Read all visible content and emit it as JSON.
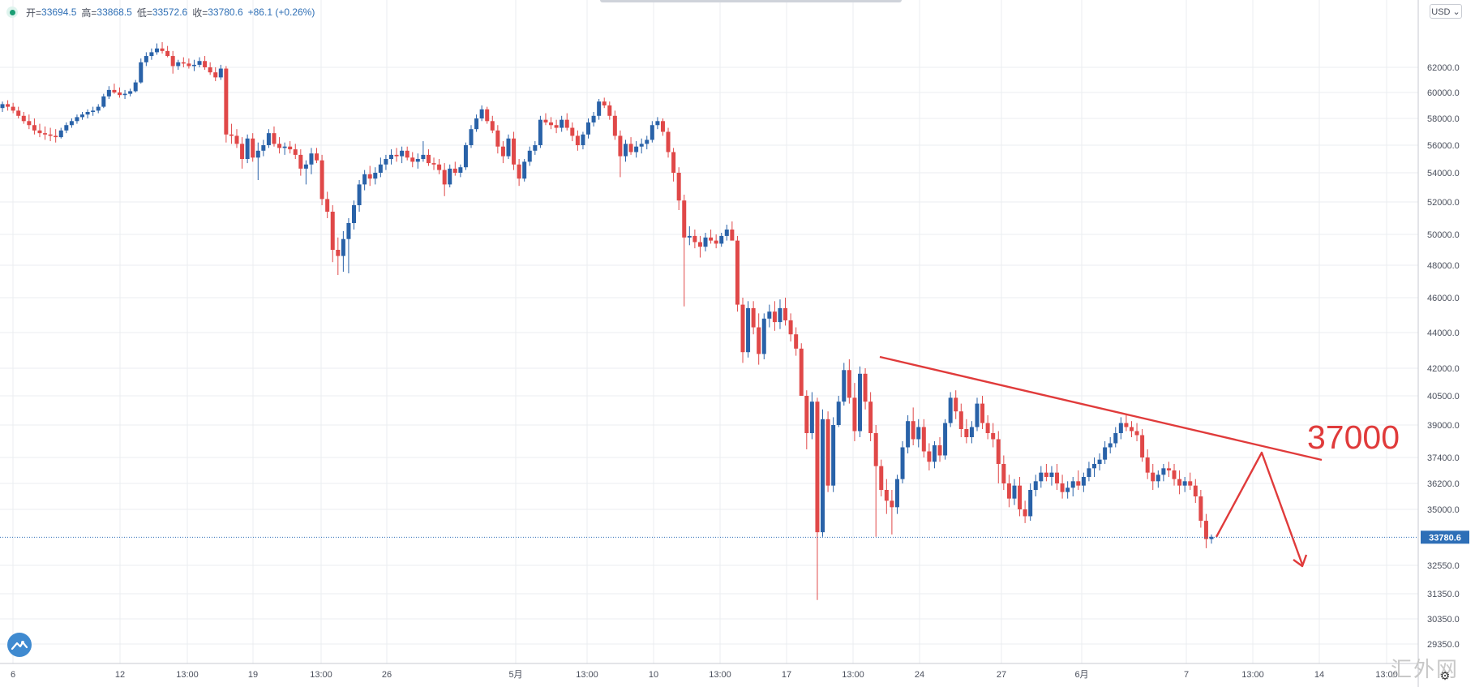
{
  "header": {
    "open_label": "开=",
    "open_value": "33694.5",
    "high_label": "高=",
    "high_value": "33868.5",
    "low_label": "低=",
    "low_value": "33572.6",
    "close_label": "收=",
    "close_value": "33780.6",
    "change": "+86.1 (+0.26%)"
  },
  "currency_button": "USD ⌄",
  "annotation_text": "37000",
  "watermark_text": "汇外网",
  "colors": {
    "up": "#2962a8",
    "down": "#e04848",
    "annotation": "#e03b3b",
    "last_price_bg": "#2e6fb7",
    "grid": "#ebedf1"
  },
  "chart_data": {
    "type": "candlestick",
    "y_ticks": [
      "62000.0",
      "60000.0",
      "58000.0",
      "56000.0",
      "54000.0",
      "52000.0",
      "50000.0",
      "48000.0",
      "46000.0",
      "44000.0",
      "42000.0",
      "40500.0",
      "39000.0",
      "37400.0",
      "36200.0",
      "35000.0",
      "32550.0",
      "31350.0",
      "30350.0",
      "29350.0"
    ],
    "x_ticks": [
      "6",
      "12",
      "13:00",
      "19",
      "13:00",
      "26",
      "5月",
      "13:00",
      "10",
      "13:00",
      "17",
      "13:00",
      "24",
      "27",
      "6月",
      "7",
      "13:00",
      "14",
      "13:00"
    ],
    "last_price_label": "33780.6",
    "last_price": 33780.6,
    "candles": [
      [
        58800,
        59300,
        58500,
        59100
      ],
      [
        59100,
        59400,
        58600,
        58900
      ],
      [
        58900,
        59200,
        58400,
        58600
      ],
      [
        58600,
        58900,
        58000,
        58200
      ],
      [
        58200,
        58500,
        57600,
        57800
      ],
      [
        57800,
        58300,
        57200,
        57500
      ],
      [
        57500,
        58000,
        56800,
        57100
      ],
      [
        57100,
        57600,
        56600,
        56900
      ],
      [
        56900,
        57400,
        56400,
        56800
      ],
      [
        56800,
        57300,
        56300,
        56700
      ],
      [
        56700,
        57200,
        56200,
        56600
      ],
      [
        56600,
        57300,
        56500,
        57100
      ],
      [
        57100,
        57700,
        56900,
        57500
      ],
      [
        57500,
        58000,
        57300,
        57800
      ],
      [
        57800,
        58300,
        57600,
        58100
      ],
      [
        58100,
        58500,
        57900,
        58300
      ],
      [
        58300,
        58700,
        58000,
        58500
      ],
      [
        58500,
        58900,
        58200,
        58600
      ],
      [
        58600,
        59100,
        58400,
        58900
      ],
      [
        58900,
        59900,
        58800,
        59700
      ],
      [
        59700,
        60500,
        59500,
        60200
      ],
      [
        60200,
        60700,
        59900,
        60000
      ],
      [
        60000,
        60400,
        59600,
        59800
      ],
      [
        59800,
        60200,
        59500,
        59900
      ],
      [
        59900,
        60300,
        59700,
        60100
      ],
      [
        60100,
        61000,
        60000,
        60800
      ],
      [
        60800,
        62700,
        60700,
        62400
      ],
      [
        62400,
        63200,
        62100,
        62900
      ],
      [
        62900,
        63500,
        62600,
        63200
      ],
      [
        63200,
        63900,
        63000,
        63500
      ],
      [
        63500,
        64000,
        63100,
        63300
      ],
      [
        63300,
        63700,
        62800,
        62900
      ],
      [
        62900,
        63300,
        61500,
        62100
      ],
      [
        62100,
        62600,
        61800,
        62400
      ],
      [
        62400,
        62800,
        62000,
        62300
      ],
      [
        62300,
        62700,
        61900,
        62100
      ],
      [
        62100,
        62600,
        61700,
        62200
      ],
      [
        62200,
        62800,
        62000,
        62500
      ],
      [
        62500,
        62900,
        61800,
        62000
      ],
      [
        62000,
        62400,
        61400,
        61600
      ],
      [
        61600,
        62000,
        60900,
        61200
      ],
      [
        61200,
        62200,
        61000,
        61900
      ],
      [
        61900,
        62100,
        56200,
        56800
      ],
      [
        56800,
        57600,
        56100,
        56700
      ],
      [
        56700,
        57200,
        55800,
        56100
      ],
      [
        56100,
        56600,
        54300,
        55000
      ],
      [
        55000,
        56800,
        54700,
        56500
      ],
      [
        56500,
        56900,
        54800,
        55100
      ],
      [
        55100,
        56200,
        53500,
        55600
      ],
      [
        55600,
        56400,
        55200,
        56000
      ],
      [
        56000,
        57200,
        55800,
        56900
      ],
      [
        56900,
        57400,
        55900,
        56100
      ],
      [
        56100,
        56600,
        55400,
        55800
      ],
      [
        55800,
        56200,
        55300,
        55900
      ],
      [
        55900,
        56300,
        55400,
        55700
      ],
      [
        55700,
        56100,
        55000,
        55300
      ],
      [
        55300,
        55700,
        53800,
        54300
      ],
      [
        54300,
        54900,
        53200,
        54600
      ],
      [
        54600,
        55800,
        53900,
        55400
      ],
      [
        55400,
        55800,
        54700,
        54900
      ],
      [
        54900,
        55300,
        51800,
        52200
      ],
      [
        52200,
        52700,
        51000,
        51400
      ],
      [
        51400,
        51800,
        48200,
        49000
      ],
      [
        49000,
        49800,
        47400,
        48600
      ],
      [
        48600,
        50200,
        47600,
        49700
      ],
      [
        49700,
        51000,
        47500,
        50700
      ],
      [
        50700,
        52100,
        50300,
        51800
      ],
      [
        51800,
        53500,
        51400,
        53200
      ],
      [
        53200,
        54200,
        52800,
        53900
      ],
      [
        53900,
        54500,
        53100,
        53600
      ],
      [
        53600,
        54400,
        53200,
        54000
      ],
      [
        54000,
        55100,
        53700,
        54600
      ],
      [
        54600,
        55300,
        54200,
        55000
      ],
      [
        55000,
        55700,
        54600,
        55300
      ],
      [
        55300,
        55800,
        54800,
        55200
      ],
      [
        55200,
        55900,
        54700,
        55600
      ],
      [
        55600,
        55900,
        54900,
        55100
      ],
      [
        55100,
        55500,
        54400,
        54800
      ],
      [
        54800,
        55400,
        54300,
        55000
      ],
      [
        55000,
        56300,
        54800,
        55300
      ],
      [
        55300,
        55700,
        54500,
        54700
      ],
      [
        54700,
        55100,
        54200,
        54600
      ],
      [
        54600,
        55000,
        53900,
        54200
      ],
      [
        54200,
        54700,
        52400,
        53200
      ],
      [
        53200,
        54600,
        53000,
        54300
      ],
      [
        54300,
        54800,
        53800,
        54000
      ],
      [
        54000,
        54600,
        53700,
        54400
      ],
      [
        54400,
        56200,
        54200,
        56000
      ],
      [
        56000,
        57500,
        55800,
        57200
      ],
      [
        57200,
        58300,
        57000,
        58000
      ],
      [
        58000,
        59000,
        57800,
        58700
      ],
      [
        58700,
        58900,
        57600,
        57800
      ],
      [
        57800,
        58200,
        56900,
        57100
      ],
      [
        57100,
        57500,
        55400,
        55900
      ],
      [
        55900,
        56300,
        54700,
        55200
      ],
      [
        55200,
        56800,
        55000,
        56500
      ],
      [
        56500,
        57000,
        54200,
        54600
      ],
      [
        54600,
        55000,
        53100,
        53600
      ],
      [
        53600,
        55000,
        53400,
        54800
      ],
      [
        54800,
        55900,
        54500,
        55600
      ],
      [
        55600,
        56300,
        55300,
        56000
      ],
      [
        56000,
        58200,
        55800,
        57900
      ],
      [
        57900,
        58400,
        57500,
        57700
      ],
      [
        57700,
        58100,
        57200,
        57500
      ],
      [
        57500,
        57900,
        56900,
        57300
      ],
      [
        57300,
        58200,
        57000,
        57900
      ],
      [
        57900,
        58400,
        57100,
        57300
      ],
      [
        57300,
        57700,
        56300,
        56700
      ],
      [
        56700,
        57100,
        55600,
        56000
      ],
      [
        56000,
        57000,
        55700,
        56800
      ],
      [
        56800,
        58000,
        56500,
        57700
      ],
      [
        57700,
        58500,
        57400,
        58200
      ],
      [
        58200,
        59500,
        57900,
        59300
      ],
      [
        59300,
        59600,
        58800,
        59000
      ],
      [
        59000,
        59300,
        57900,
        58200
      ],
      [
        58200,
        58600,
        56400,
        56700
      ],
      [
        56700,
        57100,
        53700,
        55200
      ],
      [
        55200,
        56400,
        54800,
        56100
      ],
      [
        56100,
        56600,
        55300,
        55500
      ],
      [
        55500,
        56300,
        55100,
        55900
      ],
      [
        55900,
        56500,
        55400,
        56100
      ],
      [
        56100,
        56700,
        55700,
        56400
      ],
      [
        56400,
        57800,
        56200,
        57500
      ],
      [
        57500,
        58100,
        57200,
        57800
      ],
      [
        57800,
        58000,
        56700,
        57000
      ],
      [
        57000,
        57300,
        55100,
        55500
      ],
      [
        55500,
        55800,
        53400,
        54000
      ],
      [
        54000,
        54400,
        51500,
        52100
      ],
      [
        52100,
        52500,
        45500,
        49800
      ],
      [
        49800,
        50500,
        49300,
        49900
      ],
      [
        49900,
        50300,
        49100,
        49500
      ],
      [
        49500,
        49900,
        48500,
        49200
      ],
      [
        49200,
        50100,
        48900,
        49800
      ],
      [
        49800,
        50300,
        49400,
        49600
      ],
      [
        49600,
        50000,
        49100,
        49400
      ],
      [
        49400,
        50100,
        49200,
        49900
      ],
      [
        49900,
        50600,
        49600,
        50300
      ],
      [
        50300,
        50800,
        49800,
        49600
      ],
      [
        49600,
        49900,
        45200,
        45600
      ],
      [
        45600,
        46000,
        42300,
        42900
      ],
      [
        42900,
        45800,
        42600,
        45400
      ],
      [
        45400,
        45800,
        43900,
        44300
      ],
      [
        44300,
        45100,
        42200,
        42800
      ],
      [
        42800,
        45100,
        42500,
        44800
      ],
      [
        44800,
        45600,
        44300,
        45200
      ],
      [
        45200,
        45800,
        44100,
        44600
      ],
      [
        44600,
        45900,
        44200,
        45400
      ],
      [
        45400,
        46000,
        44400,
        44700
      ],
      [
        44700,
        45100,
        43500,
        43900
      ],
      [
        43900,
        44300,
        42700,
        43100
      ],
      [
        43100,
        43400,
        40600,
        40500
      ],
      [
        40500,
        40800,
        37800,
        38600
      ],
      [
        38600,
        40700,
        38300,
        40200
      ],
      [
        40200,
        40400,
        31100,
        34000
      ],
      [
        34000,
        39800,
        33800,
        39300
      ],
      [
        39300,
        39700,
        35800,
        36100
      ],
      [
        36100,
        39400,
        35800,
        39000
      ],
      [
        39000,
        40500,
        38900,
        40200
      ],
      [
        40200,
        42300,
        40000,
        41900
      ],
      [
        41900,
        42500,
        40100,
        40400
      ],
      [
        40400,
        41200,
        38200,
        38700
      ],
      [
        38700,
        42100,
        38400,
        41700
      ],
      [
        41700,
        42000,
        39800,
        40200
      ],
      [
        40200,
        40700,
        38200,
        38600
      ],
      [
        38600,
        39000,
        33800,
        37000
      ],
      [
        37000,
        37300,
        35600,
        35900
      ],
      [
        35900,
        36400,
        34800,
        35400
      ],
      [
        35400,
        35900,
        33900,
        35100
      ],
      [
        35100,
        36600,
        34800,
        36400
      ],
      [
        36400,
        38200,
        36200,
        37900
      ],
      [
        37900,
        39500,
        37600,
        39200
      ],
      [
        39200,
        39900,
        38000,
        38300
      ],
      [
        38300,
        39300,
        37900,
        38900
      ],
      [
        38900,
        39300,
        37400,
        37700
      ],
      [
        37700,
        38100,
        36800,
        37200
      ],
      [
        37200,
        38200,
        36900,
        38000
      ],
      [
        38000,
        38400,
        37200,
        37500
      ],
      [
        37500,
        39300,
        37300,
        39100
      ],
      [
        39100,
        40700,
        38900,
        40400
      ],
      [
        40400,
        40800,
        39300,
        39700
      ],
      [
        39700,
        40100,
        38400,
        38800
      ],
      [
        38800,
        39300,
        38100,
        38400
      ],
      [
        38400,
        39200,
        38100,
        38900
      ],
      [
        38900,
        40400,
        38700,
        40100
      ],
      [
        40100,
        40500,
        38800,
        39100
      ],
      [
        39100,
        39500,
        38300,
        38600
      ],
      [
        38600,
        39100,
        37900,
        38300
      ],
      [
        38300,
        38700,
        36200,
        37100
      ],
      [
        37100,
        37500,
        35900,
        36200
      ],
      [
        36200,
        36600,
        35100,
        35500
      ],
      [
        35500,
        36400,
        35200,
        36100
      ],
      [
        36100,
        36500,
        34700,
        35000
      ],
      [
        35000,
        35400,
        34400,
        34700
      ],
      [
        34700,
        36200,
        34500,
        35900
      ],
      [
        35900,
        36600,
        35600,
        36300
      ],
      [
        36300,
        37000,
        36000,
        36700
      ],
      [
        36700,
        37100,
        36300,
        36500
      ],
      [
        36500,
        37000,
        36100,
        36700
      ],
      [
        36700,
        37100,
        35900,
        36200
      ],
      [
        36200,
        36600,
        35500,
        35800
      ],
      [
        35800,
        36300,
        35500,
        36000
      ],
      [
        36000,
        36500,
        35600,
        36300
      ],
      [
        36300,
        36800,
        35900,
        36100
      ],
      [
        36100,
        36700,
        35800,
        36500
      ],
      [
        36500,
        37200,
        36300,
        36900
      ],
      [
        36900,
        37400,
        36500,
        37100
      ],
      [
        37100,
        37600,
        36800,
        37300
      ],
      [
        37300,
        38200,
        37100,
        37900
      ],
      [
        37900,
        38400,
        37600,
        38100
      ],
      [
        38100,
        38900,
        37900,
        38600
      ],
      [
        38600,
        39400,
        38300,
        39100
      ],
      [
        39100,
        39500,
        38700,
        38900
      ],
      [
        38900,
        39200,
        38400,
        38700
      ],
      [
        38700,
        39100,
        38200,
        38500
      ],
      [
        38500,
        38800,
        37200,
        37400
      ],
      [
        37400,
        37800,
        36400,
        36700
      ],
      [
        36700,
        37100,
        35900,
        36300
      ],
      [
        36300,
        36800,
        36000,
        36600
      ],
      [
        36600,
        37100,
        36300,
        36900
      ],
      [
        36900,
        37200,
        36500,
        36800
      ],
      [
        36800,
        37100,
        36100,
        36400
      ],
      [
        36400,
        36800,
        35700,
        36100
      ],
      [
        36100,
        36500,
        35800,
        36300
      ],
      [
        36300,
        36700,
        35900,
        36100
      ],
      [
        36100,
        36400,
        35300,
        35600
      ],
      [
        35600,
        35900,
        34200,
        34500
      ],
      [
        34500,
        34800,
        33300,
        33700
      ],
      [
        33700,
        33900,
        33500,
        33800
      ]
    ]
  }
}
